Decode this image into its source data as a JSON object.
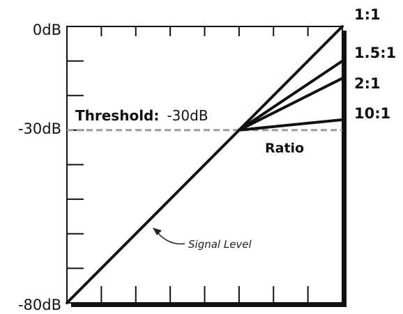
{
  "chart_data": {
    "type": "line",
    "title": "",
    "xlabel": "",
    "ylabel": "",
    "ylim": [
      -80,
      0
    ],
    "xlim": [
      -80,
      0
    ],
    "y_ticks": [
      "0dB",
      "-30dB",
      "-80dB"
    ],
    "threshold": {
      "label": "Threshold:",
      "value_text": "-30dB",
      "value": -30
    },
    "ratio_axis_label": "Ratio",
    "series": [
      {
        "name": "1:1",
        "ratio": 1
      },
      {
        "name": "1.5:1",
        "ratio": 1.5
      },
      {
        "name": "2:1",
        "ratio": 2
      },
      {
        "name": "10:1",
        "ratio": 10
      }
    ],
    "annotation": "Signal Level",
    "grid": false
  },
  "colors": {
    "line": "#111111",
    "threshold_line": "#9a9a9a",
    "background": "#ffffff"
  }
}
